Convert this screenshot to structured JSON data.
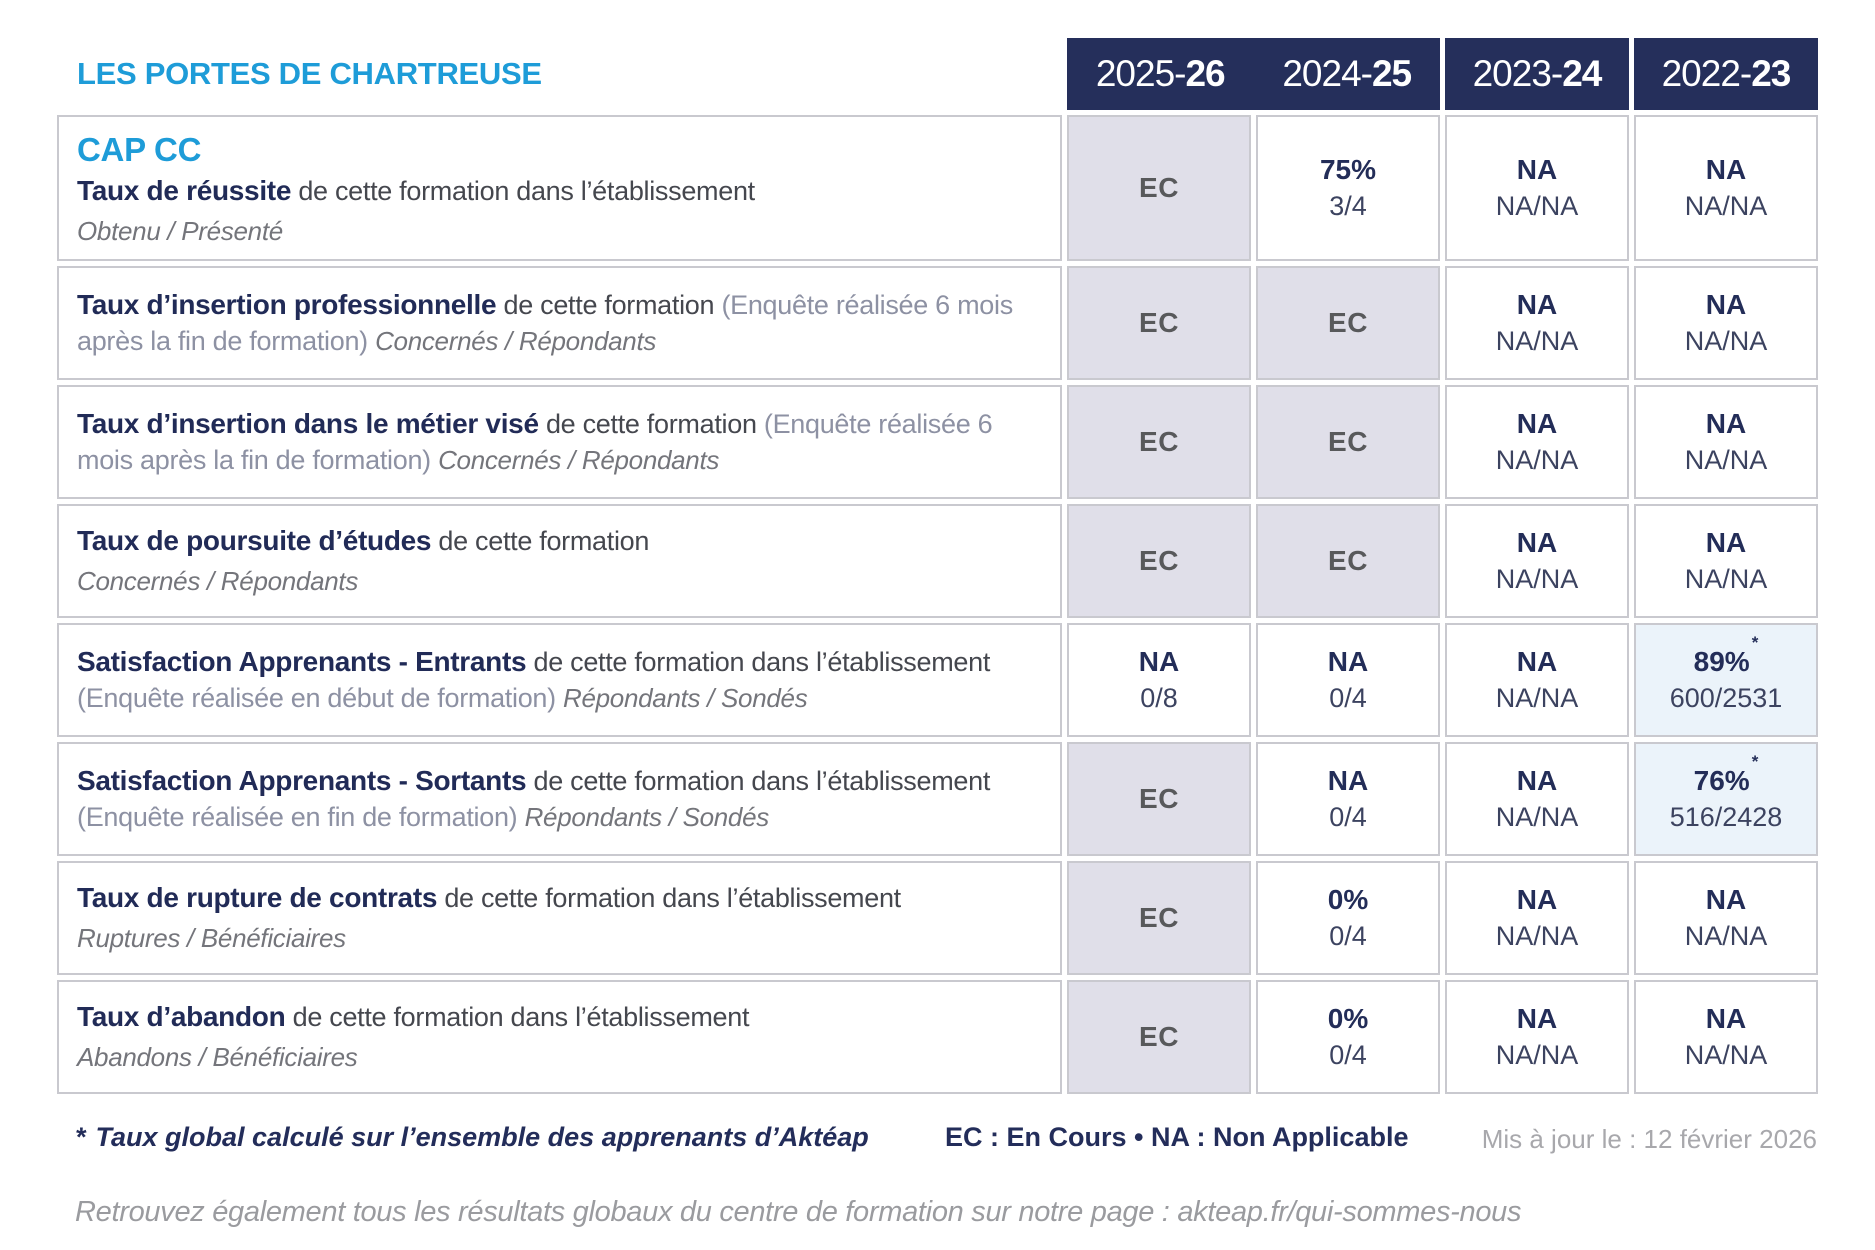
{
  "brand": {
    "title": "LES PORTES DE CHARTREUSE",
    "accent_color": "#1e9cd8"
  },
  "header": {
    "bg_color": "#252f5b",
    "years": [
      {
        "light": "2025-",
        "bold": "26"
      },
      {
        "light": "2024-",
        "bold": "25"
      },
      {
        "light": "2023-",
        "bold": "24"
      },
      {
        "light": "2022-",
        "bold": "23"
      }
    ]
  },
  "table": {
    "rows": [
      {
        "pre_title": "CAP CC",
        "title": "Taux de réussite",
        "desc": "de cette formation dans l’établissement",
        "paren": "",
        "tail": "",
        "subtitle": "Obtenu / Présenté",
        "cells": [
          {
            "kind": "ec",
            "main": "EC",
            "sub": ""
          },
          {
            "kind": "val",
            "main": "75%",
            "sub": "3/4"
          },
          {
            "kind": "val",
            "main": "NA",
            "sub": "NA/NA"
          },
          {
            "kind": "val",
            "main": "NA",
            "sub": "NA/NA"
          }
        ]
      },
      {
        "pre_title": "",
        "title": "Taux d’insertion professionnelle",
        "desc": "de cette formation",
        "paren": "(Enquête réalisée 6 mois après la fin de formation)",
        "tail": "Concernés / Répondants",
        "subtitle": "",
        "cells": [
          {
            "kind": "ec",
            "main": "EC",
            "sub": ""
          },
          {
            "kind": "ec",
            "main": "EC",
            "sub": ""
          },
          {
            "kind": "val",
            "main": "NA",
            "sub": "NA/NA"
          },
          {
            "kind": "val",
            "main": "NA",
            "sub": "NA/NA"
          }
        ]
      },
      {
        "pre_title": "",
        "title": "Taux d’insertion dans le métier visé",
        "desc": "de cette formation",
        "paren": "(Enquête réalisée 6 mois après la fin de formation)",
        "tail": "Concernés / Répondants",
        "subtitle": "",
        "cells": [
          {
            "kind": "ec",
            "main": "EC",
            "sub": ""
          },
          {
            "kind": "ec",
            "main": "EC",
            "sub": ""
          },
          {
            "kind": "val",
            "main": "NA",
            "sub": "NA/NA"
          },
          {
            "kind": "val",
            "main": "NA",
            "sub": "NA/NA"
          }
        ]
      },
      {
        "pre_title": "",
        "title": "Taux de poursuite d’études",
        "desc": "de cette formation",
        "paren": "",
        "tail": "",
        "subtitle": "Concernés / Répondants",
        "cells": [
          {
            "kind": "ec",
            "main": "EC",
            "sub": ""
          },
          {
            "kind": "ec",
            "main": "EC",
            "sub": ""
          },
          {
            "kind": "val",
            "main": "NA",
            "sub": "NA/NA"
          },
          {
            "kind": "val",
            "main": "NA",
            "sub": "NA/NA"
          }
        ]
      },
      {
        "pre_title": "",
        "title": "Satisfaction Apprenants - Entrants",
        "desc": "de cette formation dans l’établissement",
        "paren": "(Enquête réalisée en début de formation)",
        "tail": "Répondants / Sondés",
        "subtitle": "",
        "cells": [
          {
            "kind": "val",
            "main": "NA",
            "sub": "0/8"
          },
          {
            "kind": "val",
            "main": "NA",
            "sub": "0/4"
          },
          {
            "kind": "val",
            "main": "NA",
            "sub": "NA/NA"
          },
          {
            "kind": "hl",
            "main": "89%",
            "star": true,
            "sub": "600/2531"
          }
        ]
      },
      {
        "pre_title": "",
        "title": "Satisfaction Apprenants - Sortants",
        "desc": "de cette formation dans l’établissement",
        "paren": "(Enquête réalisée en fin de formation)",
        "tail": "Répondants / Sondés",
        "subtitle": "",
        "cells": [
          {
            "kind": "ec",
            "main": "EC",
            "sub": ""
          },
          {
            "kind": "val",
            "main": "NA",
            "sub": "0/4"
          },
          {
            "kind": "val",
            "main": "NA",
            "sub": "NA/NA"
          },
          {
            "kind": "hl",
            "main": "76%",
            "star": true,
            "sub": "516/2428"
          }
        ]
      },
      {
        "pre_title": "",
        "title": "Taux de rupture de contrats",
        "desc": "de cette formation dans l’établissement",
        "paren": "",
        "tail": "",
        "subtitle": "Ruptures / Bénéficiaires",
        "cells": [
          {
            "kind": "ec",
            "main": "EC",
            "sub": ""
          },
          {
            "kind": "val",
            "main": "0%",
            "sub": "0/4"
          },
          {
            "kind": "val",
            "main": "NA",
            "sub": "NA/NA"
          },
          {
            "kind": "val",
            "main": "NA",
            "sub": "NA/NA"
          }
        ]
      },
      {
        "pre_title": "",
        "title": "Taux d’abandon",
        "desc": "de cette formation dans l’établissement",
        "paren": "",
        "tail": "",
        "subtitle": "Abandons / Bénéficiaires",
        "cells": [
          {
            "kind": "ec",
            "main": "EC",
            "sub": ""
          },
          {
            "kind": "val",
            "main": "0%",
            "sub": "0/4"
          },
          {
            "kind": "val",
            "main": "NA",
            "sub": "NA/NA"
          },
          {
            "kind": "val",
            "main": "NA",
            "sub": "NA/NA"
          }
        ]
      }
    ]
  },
  "legend": {
    "star": "*",
    "footnote": "Taux global calculé sur l’ensemble des apprenants d’Aktéap",
    "abbreviations": "EC : En Cours  •  NA : Non Applicable",
    "updated": "Mis à jour le : 12 février 2026"
  },
  "bottom_note": "Retrouvez également tous les résultats globaux du centre de formation sur notre page : akteap.fr/qui-sommes-nous",
  "colors": {
    "header_navy": "#252f5b",
    "accent_cyan": "#1e9cd8",
    "ec_cell_bg": "#e0dfe9",
    "highlight_cell_bg": "#ebf3fa",
    "border_grey": "#c9c9cf"
  }
}
